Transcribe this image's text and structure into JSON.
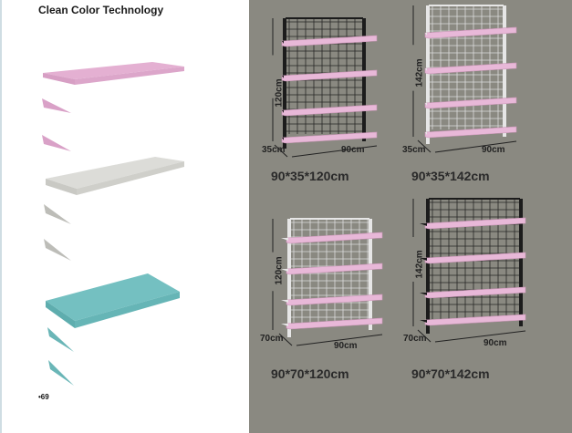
{
  "left_page": {
    "title": "Clean Color Technology",
    "page_number": "•69",
    "shelf_colors": {
      "pink": "#e4b0d2",
      "gray": "#d9d9d5",
      "teal": "#74c0c1"
    }
  },
  "right_page": {
    "background": "#8a8981",
    "units": [
      {
        "size_label": "90*35*120cm",
        "height_label": "120cm",
        "depth_label": "35cm",
        "width_label": "90cm",
        "frame_color": "#1c1c1c"
      },
      {
        "size_label": "90*35*142cm",
        "height_label": "142cm",
        "depth_label": "35cm",
        "width_label": "90cm",
        "frame_color": "#e6e6e6"
      },
      {
        "size_label": "90*70*120cm",
        "height_label": "120cm",
        "depth_label": "70cm",
        "width_label": "90cm",
        "frame_color": "#e6e6e6"
      },
      {
        "size_label": "90*70*142cm",
        "height_label": "142cm",
        "depth_label": "70cm",
        "width_label": "90cm",
        "frame_color": "#1c1c1c"
      }
    ],
    "shelf_color": "#e8b8d8"
  }
}
